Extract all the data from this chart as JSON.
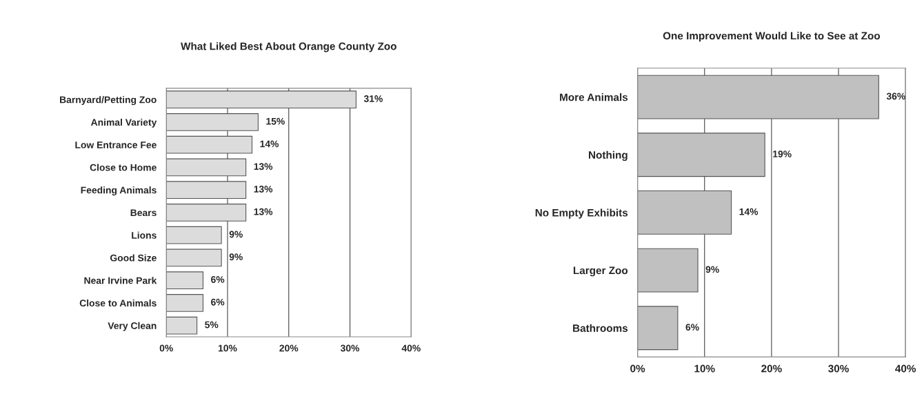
{
  "chart_data": [
    {
      "type": "bar",
      "orientation": "horizontal",
      "title": "What Liked Best About Orange County Zoo",
      "categories": [
        "Barnyard/Petting Zoo",
        "Animal Variety",
        "Low Entrance Fee",
        "Close to Home",
        "Feeding Animals",
        "Bears",
        "Lions",
        "Good Size",
        "Near Irvine Park",
        "Close to Animals",
        "Very Clean"
      ],
      "values": [
        31,
        15,
        14,
        13,
        13,
        13,
        9,
        9,
        6,
        6,
        5
      ],
      "value_labels": [
        "31%",
        "15%",
        "14%",
        "13%",
        "13%",
        "13%",
        "9%",
        "9%",
        "6%",
        "6%",
        "5%"
      ],
      "color": "#dcdcdc",
      "xlim": [
        0,
        40
      ],
      "xticks": [
        {
          "value": 0,
          "label": "0%"
        },
        {
          "value": 10,
          "label": "10%"
        },
        {
          "value": 20,
          "label": "20%"
        },
        {
          "value": 30,
          "label": "30%"
        },
        {
          "value": 40,
          "label": "40%"
        }
      ],
      "grid": "x"
    },
    {
      "type": "bar",
      "orientation": "horizontal",
      "title": "One Improvement Would Like to See at Zoo",
      "categories": [
        "More Animals",
        "Nothing",
        "No Empty Exhibits",
        "Larger Zoo",
        "Bathrooms"
      ],
      "values": [
        36,
        19,
        14,
        9,
        6
      ],
      "value_labels": [
        "36%",
        "19%",
        "14%",
        "9%",
        "6%"
      ],
      "color": "#c0c0c0",
      "xlim": [
        0,
        40
      ],
      "xticks": [
        {
          "value": 0,
          "label": "0%"
        },
        {
          "value": 10,
          "label": "10%"
        },
        {
          "value": 20,
          "label": "20%"
        },
        {
          "value": 30,
          "label": "30%"
        },
        {
          "value": 40,
          "label": "40%"
        }
      ],
      "grid": "x"
    }
  ]
}
